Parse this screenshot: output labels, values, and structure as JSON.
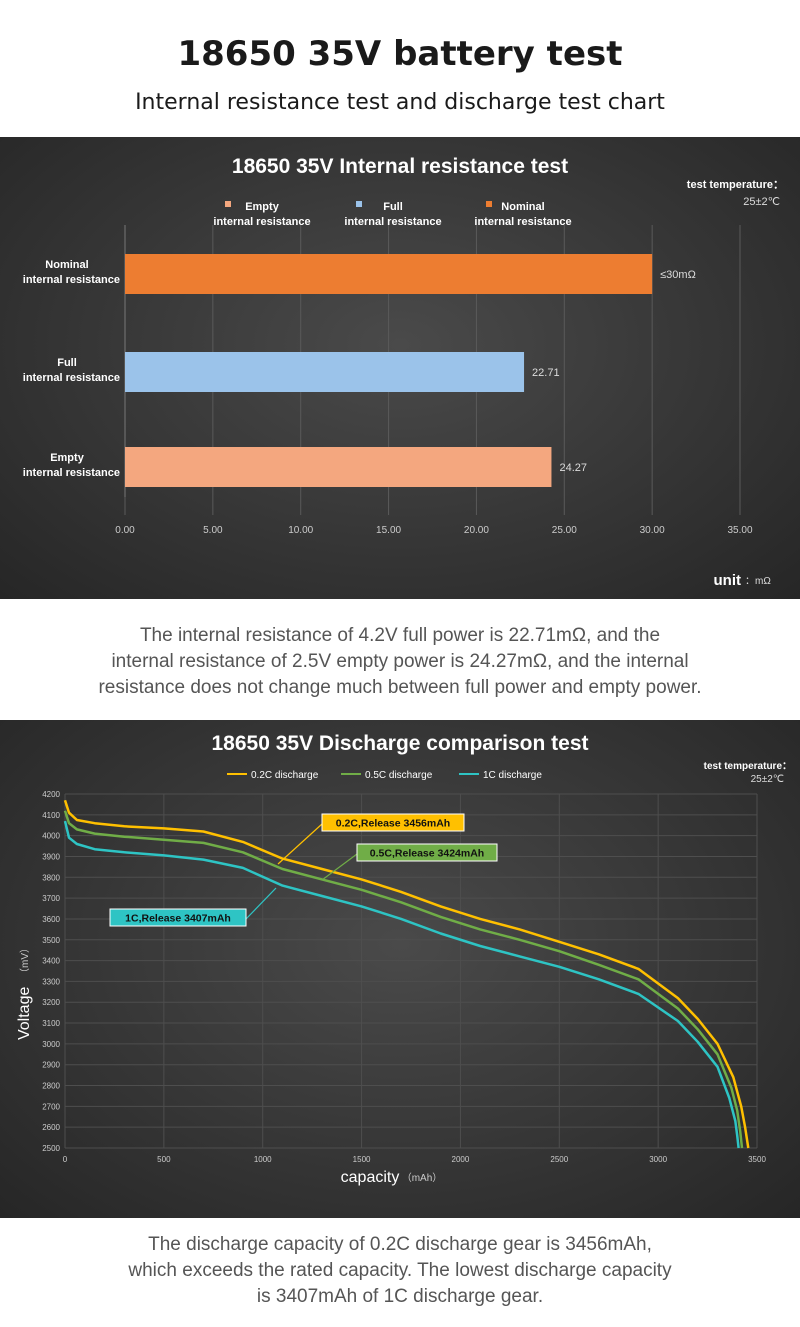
{
  "header": {
    "title": "18650 35V battery test",
    "subtitle": "Internal resistance test and discharge test chart"
  },
  "captions": {
    "resistance": [
      "The internal resistance of 4.2V full power is 22.71mΩ, and the",
      "internal resistance of 2.5V empty power is 24.27mΩ, and the internal",
      "resistance does not change much between full power and empty power."
    ],
    "discharge": [
      "The discharge capacity of 0.2C discharge gear is 3456mAh,",
      "which exceeds the rated capacity. The lowest discharge capacity",
      "is 3407mAh of 1C discharge gear."
    ]
  },
  "chart_data": [
    {
      "type": "bar",
      "orientation": "horizontal",
      "title": "18650 35V Internal resistance test",
      "note_label": "test temperature：",
      "note_value": "25±2℃",
      "unit_label": "unit",
      "unit_value": "：mΩ",
      "xlim": [
        0,
        35
      ],
      "xticks": [
        "0.00",
        "5.00",
        "10.00",
        "15.00",
        "20.00",
        "25.00",
        "30.00",
        "35.00"
      ],
      "legend": [
        {
          "line1": "Empty",
          "line2": "internal resistance",
          "color": "#f4a77f"
        },
        {
          "line1": "Full",
          "line2": "internal resistance",
          "color": "#9bc3ea"
        },
        {
          "line1": "Nominal",
          "line2": "internal resistance",
          "color": "#ed7d31"
        }
      ],
      "bars": [
        {
          "line1": "Nominal",
          "line2": "internal resistance",
          "value": 30,
          "label": "≤30mΩ",
          "color": "#ed7d31"
        },
        {
          "line1": "Full",
          "line2": "internal resistance",
          "value": 22.71,
          "label": "22.71",
          "color": "#9bc3ea"
        },
        {
          "line1": "Empty",
          "line2": "internal resistance",
          "value": 24.27,
          "label": "24.27",
          "color": "#f4a77f"
        }
      ]
    },
    {
      "type": "line",
      "title": "18650 35V  Discharge comparison test",
      "note_label": "test temperature：",
      "note_value": "25±2℃",
      "xlabel": "capacity",
      "xlabel_unit": "（mAh）",
      "ylabel": "Voltage",
      "ylabel_unit": "（mV）",
      "xlim": [
        0,
        3500
      ],
      "ylim": [
        2500,
        4200
      ],
      "xticks": [
        0,
        500,
        1000,
        1500,
        2000,
        2500,
        3000,
        3500
      ],
      "yticks": [
        2500,
        2600,
        2700,
        2800,
        2900,
        3000,
        3100,
        3200,
        3300,
        3400,
        3500,
        3600,
        3700,
        3800,
        3900,
        4000,
        4100,
        4200
      ],
      "series": [
        {
          "name": "0.2C discharge",
          "color": "#ffc000",
          "x": [
            0,
            20,
            60,
            150,
            300,
            500,
            700,
            900,
            1100,
            1300,
            1500,
            1700,
            1900,
            2100,
            2300,
            2500,
            2700,
            2900,
            3100,
            3200,
            3300,
            3380,
            3420,
            3440,
            3456
          ],
          "y": [
            4170,
            4110,
            4075,
            4060,
            4045,
            4035,
            4020,
            3970,
            3890,
            3840,
            3790,
            3730,
            3660,
            3600,
            3550,
            3490,
            3430,
            3360,
            3220,
            3120,
            3000,
            2840,
            2700,
            2600,
            2500
          ],
          "annotation": "0.2C,Release 3456mAh",
          "annotation_bg": "#ffc000"
        },
        {
          "name": "0.5C discharge",
          "color": "#70ad47",
          "x": [
            0,
            20,
            60,
            150,
            300,
            500,
            700,
            900,
            1100,
            1300,
            1500,
            1700,
            1900,
            2100,
            2300,
            2500,
            2700,
            2900,
            3100,
            3200,
            3300,
            3370,
            3400,
            3415,
            3424
          ],
          "y": [
            4120,
            4060,
            4030,
            4010,
            3995,
            3980,
            3965,
            3920,
            3840,
            3790,
            3740,
            3680,
            3610,
            3550,
            3500,
            3445,
            3380,
            3310,
            3170,
            3070,
            2950,
            2790,
            2680,
            2580,
            2500
          ],
          "annotation": "0.5C,Release 3424mAh",
          "annotation_bg": "#70ad47"
        },
        {
          "name": "1C discharge",
          "color": "#2ec4c4",
          "x": [
            0,
            20,
            60,
            150,
            300,
            500,
            700,
            900,
            1100,
            1300,
            1500,
            1700,
            1900,
            2100,
            2300,
            2500,
            2700,
            2900,
            3100,
            3200,
            3300,
            3360,
            3390,
            3400,
            3407
          ],
          "y": [
            4070,
            3990,
            3960,
            3935,
            3920,
            3905,
            3885,
            3845,
            3760,
            3710,
            3660,
            3600,
            3530,
            3470,
            3420,
            3370,
            3310,
            3240,
            3110,
            3010,
            2890,
            2740,
            2630,
            2560,
            2500
          ],
          "annotation": "1C,Release 3407mAh",
          "annotation_bg": "#2ec4c4"
        }
      ]
    }
  ]
}
